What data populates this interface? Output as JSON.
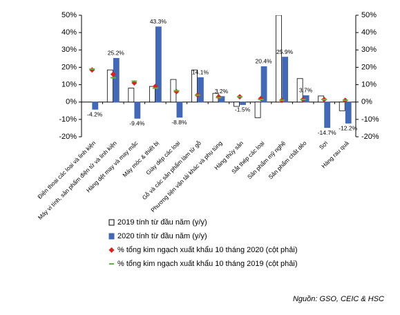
{
  "chart_data": {
    "type": "bar",
    "categories": [
      "Điện thoại các loại và linh kiện",
      "Máy vi tính, sản phẩm điện tử và linh kiện",
      "Hàng dệt may và may mặc",
      "Máy móc & thiết bị",
      "Giày dép các loại",
      "Gỗ và các sản phẩm làm từ gỗ",
      "Phương tiện vận tải khác và phụ tùng",
      "Hàng thủy sản",
      "Sắt thép các loại",
      "Sản phẩm mỹ nghệ",
      "Sản phẩm chất dẻo",
      "Sợi",
      "Hàng rau quả"
    ],
    "series": [
      {
        "name": "2019 tính từ đầu năm (y/y)",
        "color": "#ffffff",
        "values": [
          0,
          18.5,
          8,
          9,
          13,
          18.5,
          5,
          -2.5,
          -9,
          50,
          13.5,
          3.5,
          -5
        ]
      },
      {
        "name": "2020 tính từ đầu năm (y/y)",
        "color": "#4169b8",
        "values": [
          -4.2,
          25.2,
          -9.4,
          43.3,
          -8.8,
          14.1,
          3.2,
          -1.5,
          20.4,
          25.9,
          3.7,
          -14.7,
          -12.2
        ],
        "value_labels": [
          "-4.2%",
          "25.2%",
          "-9.4%",
          "43.3%",
          "-8.8%",
          "14.1%",
          "3.2%",
          "-1.5%",
          "20.4%",
          "25.9%",
          "3.7%",
          "-14.7%",
          "-12.2%"
        ]
      },
      {
        "name": "% tổng kim ngạch xuất khẩu 10 tháng 2020 (cột phải)",
        "color": "#e0201b",
        "axis": "y2",
        "values": [
          18.5,
          16,
          11,
          9,
          6,
          4,
          3,
          3,
          2,
          1,
          1.5,
          1.5,
          1
        ]
      },
      {
        "name": "% tổng kim ngạch xuất khẩu 10 tháng 2019 (cột phải)",
        "color": "#5cb83c",
        "axis": "y2",
        "values": [
          19,
          14,
          12,
          8,
          6.5,
          4,
          2.5,
          3,
          1.5,
          1,
          1.5,
          1.5,
          1
        ]
      }
    ],
    "ylim": [
      -20,
      50
    ],
    "yticks": [
      {
        "value": -20,
        "label": "-20%"
      },
      {
        "value": -10,
        "label": "-10%"
      },
      {
        "value": 0,
        "label": "0%"
      },
      {
        "value": 10,
        "label": "10%"
      },
      {
        "value": 20,
        "label": "20%"
      },
      {
        "value": 30,
        "label": "30%"
      },
      {
        "value": 40,
        "label": "40%"
      },
      {
        "value": 50,
        "label": "50%"
      }
    ],
    "y2lim": [
      -20,
      50
    ],
    "y2ticks": [
      {
        "value": -20,
        "label": "-20%"
      },
      {
        "value": -10,
        "label": "-10%"
      },
      {
        "value": 0,
        "label": "0%"
      },
      {
        "value": 10,
        "label": "10%"
      },
      {
        "value": 20,
        "label": "20%"
      },
      {
        "value": 30,
        "label": "30%"
      },
      {
        "value": 40,
        "label": "40%"
      },
      {
        "value": 50,
        "label": "50%"
      }
    ],
    "legend": "bottom",
    "source": "Nguồn: GSO, CEIC & HSC"
  }
}
